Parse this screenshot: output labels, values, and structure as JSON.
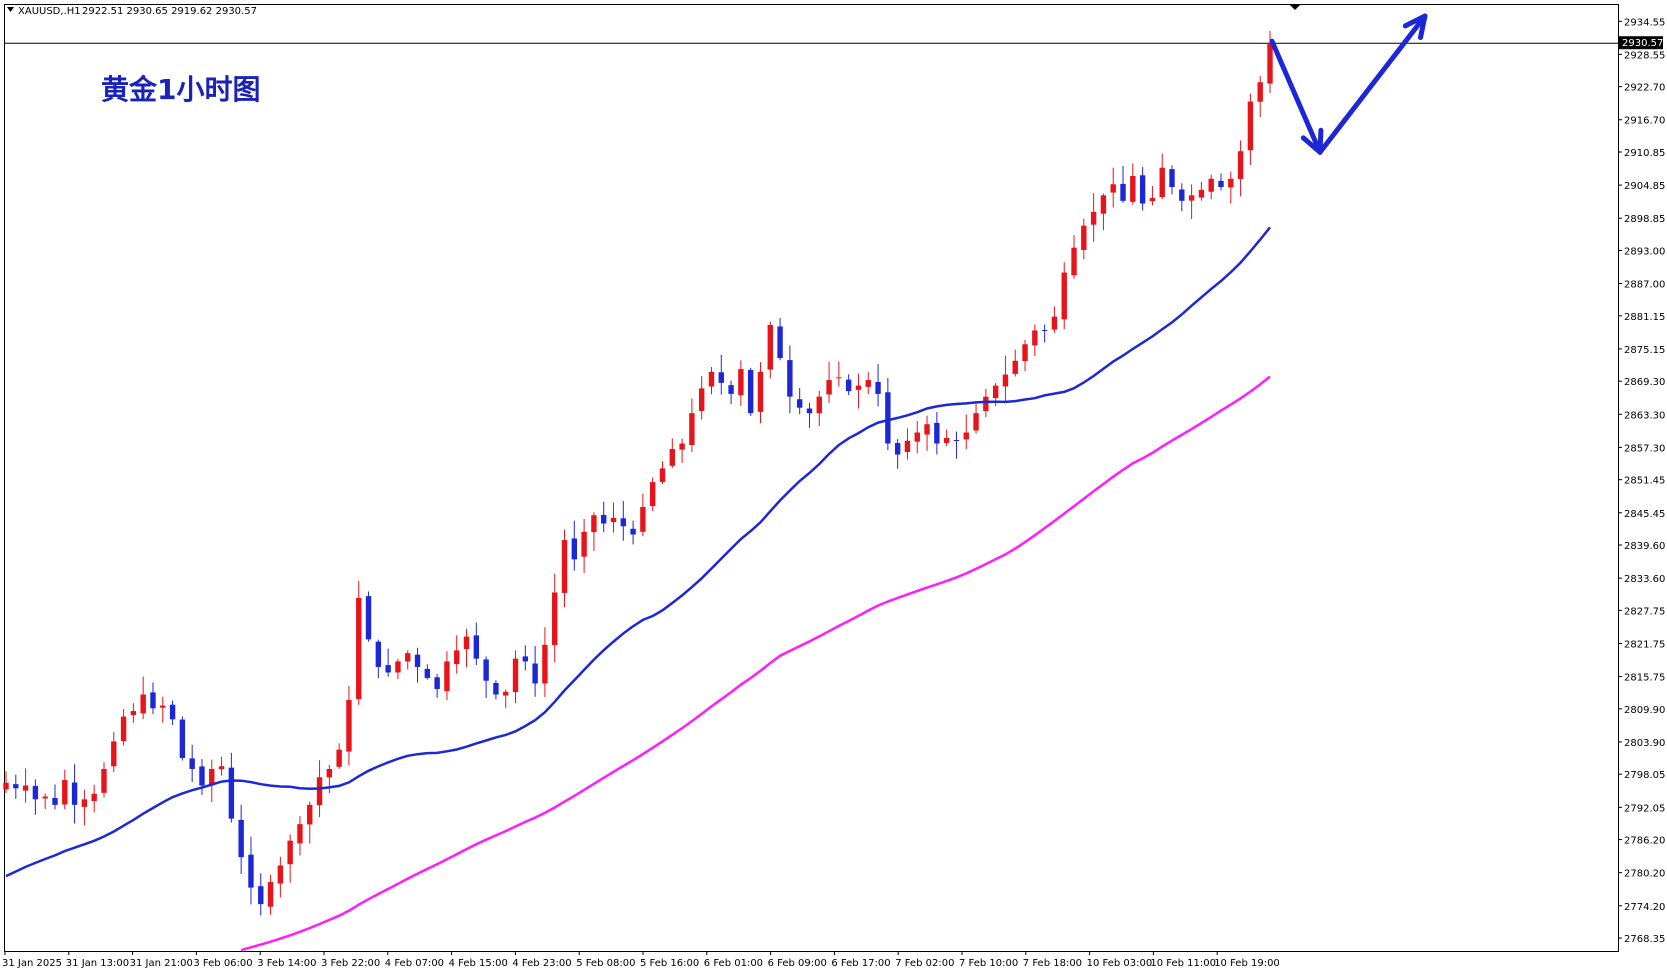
{
  "header": {
    "symbol": "XAUUSD,.H1",
    "ohlc": "2922.51 2930.65 2919.62 2930.57"
  },
  "overlay_title": "黄金1小时图",
  "current_price_label": "2930.57",
  "colors": {
    "bull": "#e8141c",
    "bear": "#1c28d6",
    "ma_fast": "#1c28d6",
    "ma_slow": "#ff1cff",
    "arrow": "#1c28d6",
    "title": "#1a22b8",
    "axis": "#000000"
  },
  "chart_data": {
    "type": "candlestick",
    "timeframe": "H1",
    "ylim": [
      2766.0,
      2937.5
    ],
    "y_ticks": [
      "2934.55",
      "2928.55",
      "2922.70",
      "2916.70",
      "2910.85",
      "2904.85",
      "2898.85",
      "2893.00",
      "2887.00",
      "2881.15",
      "2875.15",
      "2869.30",
      "2863.30",
      "2857.30",
      "2851.45",
      "2845.45",
      "2839.60",
      "2833.60",
      "2827.75",
      "2821.75",
      "2815.75",
      "2809.90",
      "2803.90",
      "2798.05",
      "2792.05",
      "2786.20",
      "2780.20",
      "2774.20",
      "2768.35"
    ],
    "x_ticks": [
      "31 Jan 2025",
      "31 Jan 13:00",
      "31 Jan 21:00",
      "3 Feb 06:00",
      "3 Feb 14:00",
      "3 Feb 22:00",
      "4 Feb 07:00",
      "4 Feb 15:00",
      "4 Feb 23:00",
      "5 Feb 08:00",
      "5 Feb 16:00",
      "6 Feb 01:00",
      "6 Feb 09:00",
      "6 Feb 17:00",
      "7 Feb 02:00",
      "7 Feb 10:00",
      "7 Feb 18:00",
      "10 Feb 03:00",
      "10 Feb 11:00",
      "10 Feb 19:00"
    ],
    "key_closes": [
      [
        2796.5,
        2795.5,
        2796.0,
        2793.5,
        2794.0,
        2792.5,
        2797.0,
        2792.5,
        2793.5,
        2794.5,
        2799.0,
        2804.0,
        2808.5,
        2809.5,
        2812.5,
        2810.0,
        2810.5,
        2808.0,
        2801.0,
        2799.0,
        2796.0,
        2799.0,
        2799.5,
        2790.0,
        2783.0,
        2777.5,
        2774.5,
        2778.5,
        2781.5,
        2786.0,
        2789.0,
        2792.5,
        2797.5,
        2799.0,
        2802.5,
        2811.5,
        2830.0,
        2822.5,
        2817.5,
        2816.5,
        2818.5,
        2820.0,
        2817.5,
        2815.5,
        2813.5,
        2818.5
      ],
      [
        2820.5,
        2823.0,
        2819.0,
        2815.0,
        2812.5,
        2813.0,
        2819.0,
        2818.5,
        2814.5,
        2821.5,
        2831.0,
        2840.5,
        2837.0,
        2842.0,
        2845.0,
        2843.5,
        2844.5,
        2843.0,
        2841.5,
        2846.5,
        2851.0,
        2853.5,
        2857.0,
        2858.0,
        2863.5,
        2868.0,
        2871.0,
        2869.0,
        2867.0,
        2871.5,
        2863.5,
        2871.0,
        2879.5,
        2873.5,
        2866.5,
        2864.5,
        2863.5,
        2866.5,
        2869.5,
        2870.0,
        2867.5,
        2868.5,
        2869.5,
        2867.0,
        2858.0,
        2856.0
      ]
    ],
    "ma_fast_label": "",
    "ma_slow_label": ""
  }
}
